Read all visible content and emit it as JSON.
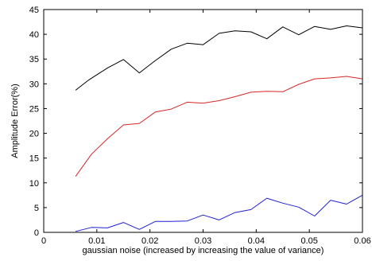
{
  "chart_data": {
    "type": "line",
    "title": "",
    "xlabel": "gaussian noise (increased by increasing the value of variance)",
    "ylabel": "Amplitude Error(%)",
    "xlim": [
      0,
      0.06
    ],
    "ylim": [
      0,
      45
    ],
    "xticks": [
      0,
      0.01,
      0.02,
      0.03,
      0.04,
      0.05,
      0.06
    ],
    "xtick_labels": [
      "0",
      "0.01",
      "0.02",
      "0.03",
      "0.04",
      "0.05",
      "0.06"
    ],
    "yticks": [
      0,
      5,
      10,
      15,
      20,
      25,
      30,
      35,
      40,
      45
    ],
    "ytick_labels": [
      "0",
      "5",
      "10",
      "15",
      "20",
      "25",
      "30",
      "35",
      "40",
      "45"
    ],
    "grid": false,
    "legend": false,
    "series": [
      {
        "color": "#000000",
        "x": [
          0.006,
          0.0085,
          0.012,
          0.015,
          0.018,
          0.021,
          0.024,
          0.027,
          0.03,
          0.033,
          0.036,
          0.039,
          0.042,
          0.045,
          0.048,
          0.051,
          0.054,
          0.057,
          0.06
        ],
        "y": [
          28.7,
          30.8,
          33.2,
          34.9,
          32.2,
          34.7,
          37.0,
          38.2,
          37.9,
          40.2,
          40.7,
          40.5,
          39.1,
          41.5,
          39.9,
          41.6,
          41.0,
          41.7,
          41.3
        ]
      },
      {
        "color": "#d62728",
        "x": [
          0.006,
          0.009,
          0.012,
          0.015,
          0.018,
          0.021,
          0.024,
          0.027,
          0.03,
          0.033,
          0.036,
          0.039,
          0.042,
          0.045,
          0.048,
          0.051,
          0.054,
          0.057,
          0.06
        ],
        "y": [
          11.3,
          15.8,
          18.9,
          21.7,
          22.0,
          24.3,
          24.9,
          26.3,
          26.1,
          26.6,
          27.4,
          28.3,
          28.5,
          28.4,
          29.9,
          31.0,
          31.2,
          31.5,
          31.0
        ]
      },
      {
        "color": "#1f1fd6",
        "x": [
          0.006,
          0.009,
          0.012,
          0.015,
          0.018,
          0.021,
          0.024,
          0.027,
          0.03,
          0.033,
          0.036,
          0.039,
          0.042,
          0.045,
          0.048,
          0.051,
          0.054,
          0.057,
          0.06
        ],
        "y": [
          0.2,
          1.0,
          0.9,
          2.0,
          0.6,
          2.2,
          2.2,
          2.3,
          3.5,
          2.5,
          4.0,
          4.6,
          6.9,
          5.9,
          5.1,
          3.3,
          6.5,
          5.7,
          7.5
        ]
      }
    ]
  }
}
